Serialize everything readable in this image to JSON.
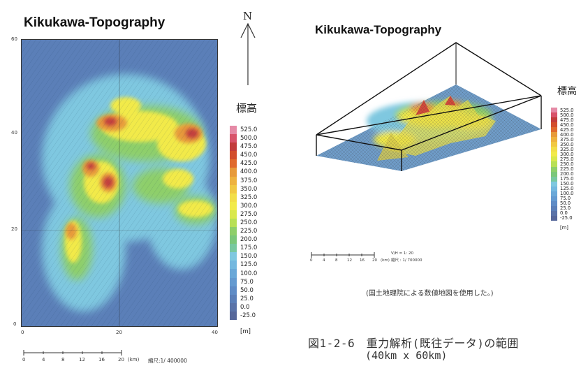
{
  "left_panel": {
    "title": "Kikukawa-Topography",
    "y_ticks": [
      "60",
      "40",
      "20",
      "0"
    ],
    "x_ticks": [
      "0",
      "20",
      "40"
    ],
    "north_label": "N",
    "legend_title": "標高",
    "legend_values": [
      "525.0",
      "500.0",
      "475.0",
      "450.0",
      "425.0",
      "400.0",
      "375.0",
      "350.0",
      "325.0",
      "300.0",
      "275.0",
      "250.0",
      "225.0",
      "200.0",
      "175.0",
      "150.0",
      "125.0",
      "100.0",
      "75.0",
      "50.0",
      "25.0",
      "0.0",
      "-25.0"
    ],
    "legend_unit": "[m]",
    "scale_ticks": [
      "0",
      "4",
      "8",
      "12",
      "16",
      "20"
    ],
    "scale_unit": "(km)",
    "scale_ratio": "縮尺:1/ 400000"
  },
  "right_panel": {
    "title": "Kikukawa-Topography",
    "legend_title": "標高",
    "legend_values": [
      "525.0",
      "500.0",
      "475.0",
      "450.0",
      "425.0",
      "400.0",
      "375.0",
      "350.0",
      "325.0",
      "300.0",
      "275.0",
      "250.0",
      "225.0",
      "200.0",
      "175.0",
      "150.0",
      "125.0",
      "100.0",
      "75.0",
      "50.0",
      "25.0",
      "0.0",
      "-25.0"
    ],
    "legend_unit": "[m]",
    "scale_ticks": [
      "0",
      "4",
      "8",
      "12",
      "16",
      "20"
    ],
    "scale_unit": "(km)",
    "vh_ratio": "V/H = 1:    20",
    "scale_ratio": "縮尺 : 1/ 700000",
    "source_note": "(国土地理院による数値地図を使用した。)"
  },
  "caption": {
    "line1": "図1-2-6　重力解析(既往データ)の範囲",
    "line2": "(40km x 60km)"
  },
  "colors": {
    "low": "#5b7fb8",
    "mid": "#7fc8e0",
    "green": "#8ecf6a",
    "yellow": "#f2ea4a",
    "orange": "#e79a3a",
    "high": "#c23c3c",
    "peak": "#e58aa6"
  }
}
